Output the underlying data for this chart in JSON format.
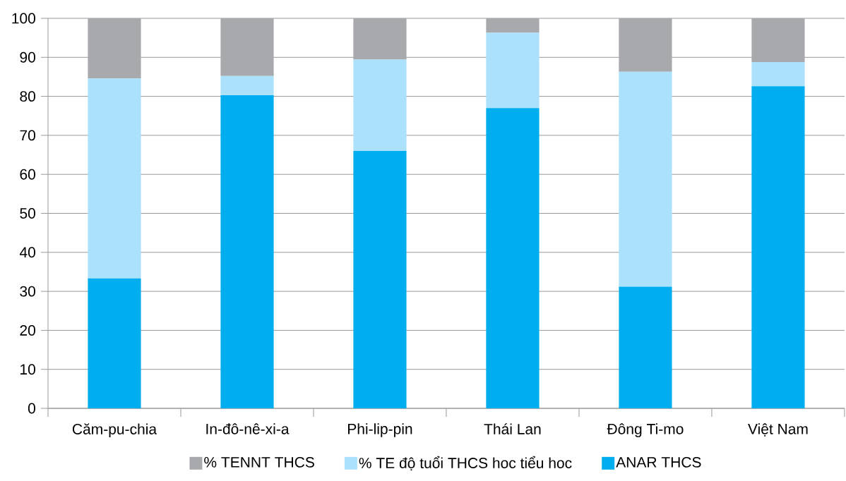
{
  "chart_data": {
    "type": "bar",
    "stacked": true,
    "categories": [
      "Căm-pu-chia",
      "In-đô-nê-xi-a",
      "Phi-lip-pin",
      "Thái Lan",
      "Đông Ti-mo",
      "Việt Nam"
    ],
    "series": [
      {
        "name": "ANAR THCS",
        "color": "#00aeef",
        "values": [
          33.3,
          80.3,
          66.0,
          77.0,
          31.2,
          82.6
        ]
      },
      {
        "name": "% TE độ tuổi THCS hoc tiểu hoc",
        "color": "#abe1fa",
        "values": [
          51.3,
          4.9,
          23.4,
          19.3,
          55.1,
          6.2
        ]
      },
      {
        "name": "% TENNT THCS",
        "color": "#a7a9ac",
        "values": [
          15.4,
          14.8,
          10.6,
          3.7,
          13.7,
          11.2
        ]
      }
    ],
    "ylim": [
      0,
      100
    ],
    "yticks": [
      0,
      10,
      20,
      30,
      40,
      50,
      60,
      70,
      80,
      90,
      100
    ],
    "grid": "y",
    "legend": "bottom"
  }
}
